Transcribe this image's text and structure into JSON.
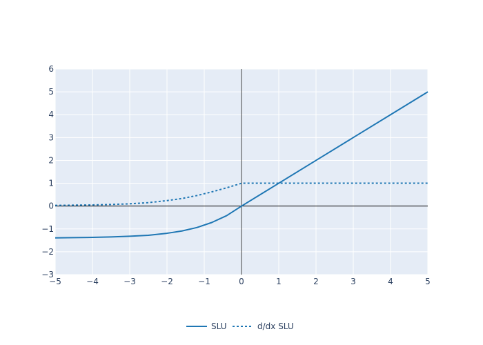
{
  "chart_data": {
    "type": "line",
    "xlim": [
      -5,
      5
    ],
    "ylim": [
      -3,
      6
    ],
    "x_ticks": [
      -5,
      -4,
      -3,
      -2,
      -1,
      0,
      1,
      2,
      3,
      4,
      5
    ],
    "y_ticks": [
      -3,
      -2,
      -1,
      0,
      1,
      2,
      3,
      4,
      5,
      6
    ],
    "x_tick_labels": [
      "−5",
      "−4",
      "−3",
      "−2",
      "−1",
      "0",
      "1",
      "2",
      "3",
      "4",
      "5"
    ],
    "y_tick_labels": [
      "−3",
      "−2",
      "−1",
      "0",
      "1",
      "2",
      "3",
      "4",
      "5",
      "6"
    ],
    "grid": true,
    "legend_position": "bottom-center",
    "plot_bg_color": "#e5ecf6",
    "grid_color": "#ffffff",
    "zero_line_color": "#444444",
    "series": [
      {
        "name": "SLU",
        "style": "solid",
        "color": "#1f77b4",
        "x": [
          -5,
          -4.5,
          -4,
          -3.5,
          -3,
          -2.5,
          -2,
          -1.6,
          -1.2,
          -0.8,
          -0.4,
          0,
          1,
          2,
          3,
          4,
          5
        ],
        "y": [
          -1.39,
          -1.38,
          -1.37,
          -1.35,
          -1.32,
          -1.28,
          -1.19,
          -1.09,
          -0.94,
          -0.72,
          -0.42,
          0,
          1,
          2,
          3,
          4,
          5
        ]
      },
      {
        "name": "d/dx SLU",
        "style": "dotted",
        "color": "#1f77b4",
        "x": [
          -5,
          -4.5,
          -4,
          -3.5,
          -3,
          -2.5,
          -2,
          -1.6,
          -1.2,
          -0.8,
          -0.4,
          0,
          1,
          2,
          3,
          4,
          5
        ],
        "y": [
          0.03,
          0.04,
          0.05,
          0.07,
          0.1,
          0.15,
          0.24,
          0.33,
          0.46,
          0.62,
          0.8,
          1,
          1,
          1,
          1,
          1,
          1
        ]
      }
    ]
  }
}
